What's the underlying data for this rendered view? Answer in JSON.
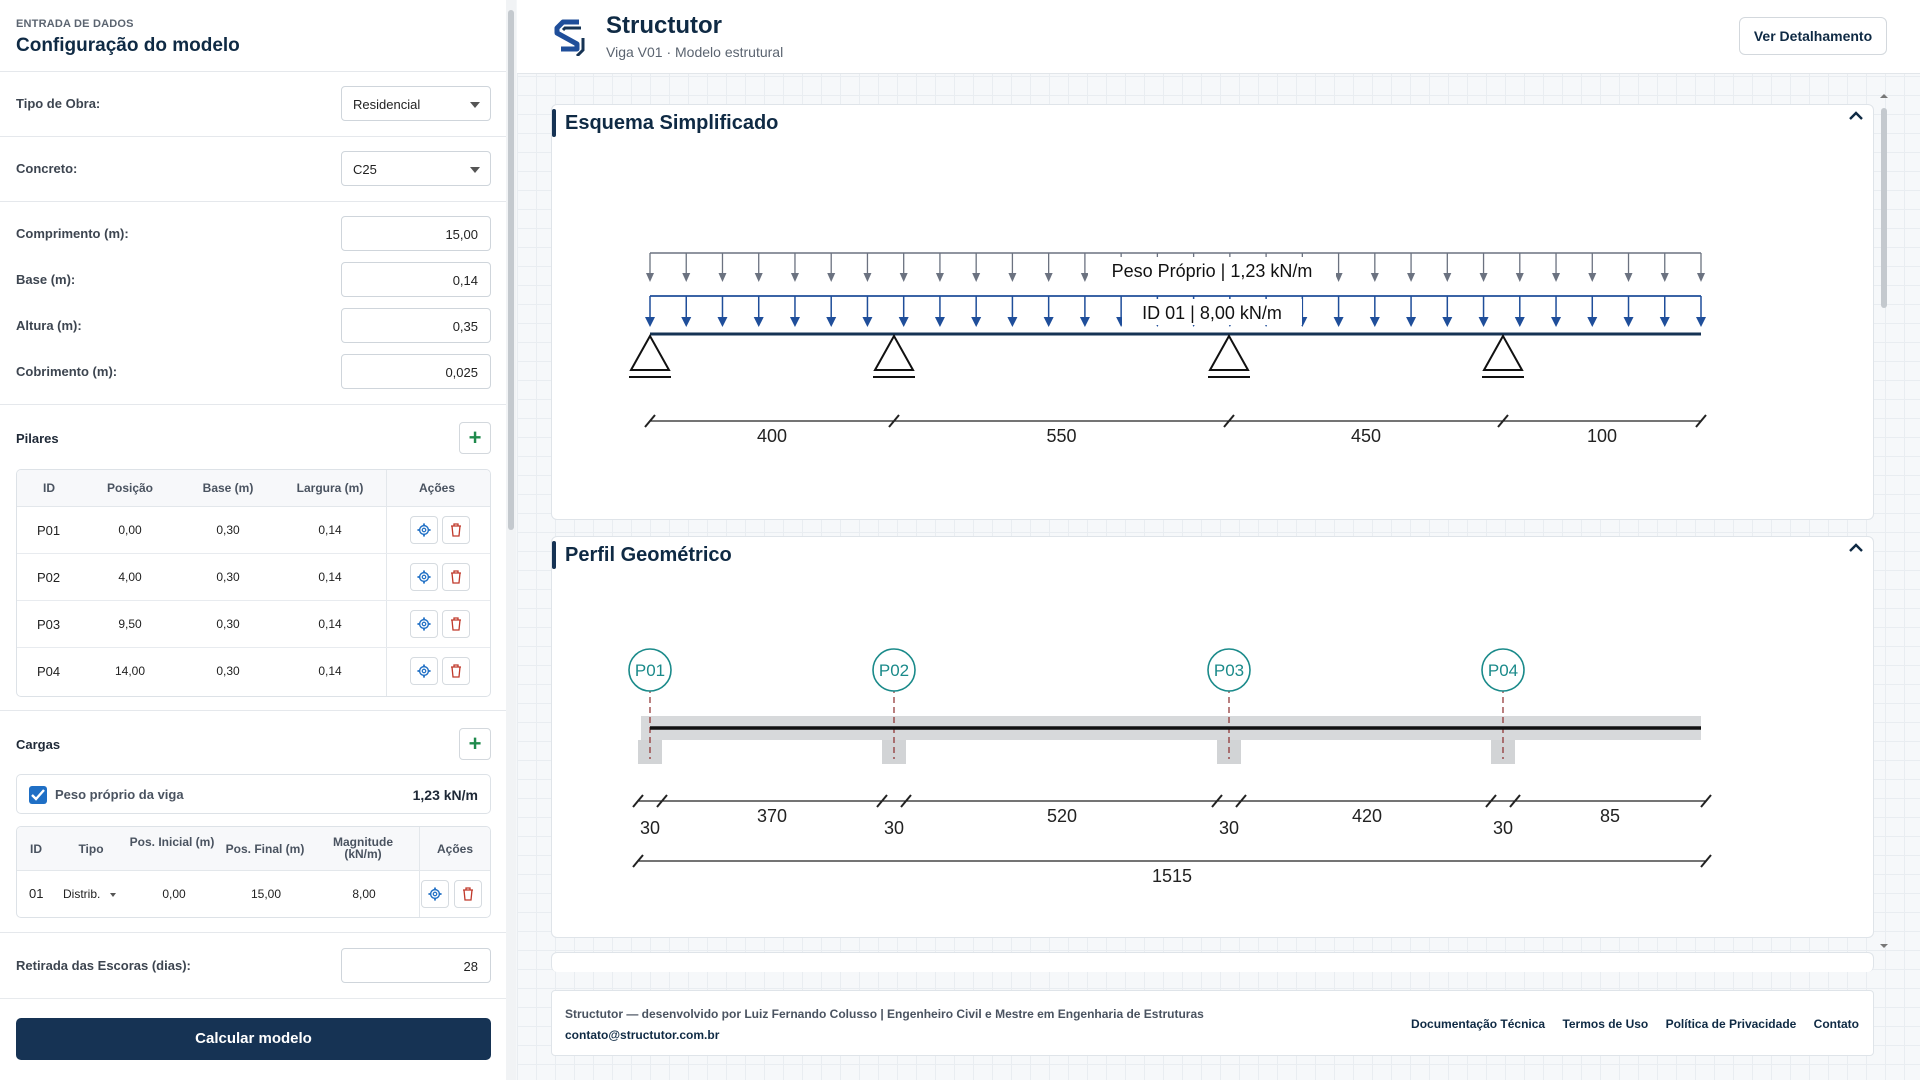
{
  "sidebar": {
    "eyebrow": "ENTRADA DE DADOS",
    "title": "Configuração do modelo",
    "tipo_obra": {
      "label": "Tipo de Obra:",
      "value": "Residencial"
    },
    "concreto": {
      "label": "Concreto:",
      "value": "C25"
    },
    "comprimento": {
      "label": "Comprimento (m):",
      "value": "15,00"
    },
    "base": {
      "label": "Base (m):",
      "value": "0,14"
    },
    "altura": {
      "label": "Altura (m):",
      "value": "0,35"
    },
    "cobrimento": {
      "label": "Cobrimento (m):",
      "value": "0,025"
    },
    "pilares": {
      "title": "Pilares",
      "add_label": "+",
      "headers": [
        "ID",
        "Posição",
        "Base (m)",
        "Largura (m)",
        "Ações"
      ],
      "rows": [
        {
          "id": "P01",
          "posicao": "0,00",
          "base": "0,30",
          "largura": "0,14"
        },
        {
          "id": "P02",
          "posicao": "4,00",
          "base": "0,30",
          "largura": "0,14"
        },
        {
          "id": "P03",
          "posicao": "9,50",
          "base": "0,30",
          "largura": "0,14"
        },
        {
          "id": "P04",
          "posicao": "14,00",
          "base": "0,30",
          "largura": "0,14"
        }
      ]
    },
    "cargas": {
      "title": "Cargas",
      "add_label": "+",
      "peso_proprio": {
        "label": "Peso próprio da viga",
        "value": "1,23 kN/m",
        "checked": true
      },
      "headers": [
        "ID",
        "Tipo",
        "Pos. Inicial (m)",
        "Pos. Final (m)",
        "Magnitude (kN/m)",
        "Ações"
      ],
      "rows": [
        {
          "id": "01",
          "tipo": "Distrib.",
          "inicio": "0,00",
          "fim": "15,00",
          "magnitude": "8,00"
        }
      ]
    },
    "escoras": {
      "label": "Retirada das Escoras (dias):",
      "value": "28"
    },
    "calc_label": "Calcular modelo"
  },
  "header": {
    "title": "Structutor",
    "subtitle": "Viga V01 · Modelo estrutural",
    "detail_button": "Ver Detalhamento"
  },
  "esquema": {
    "title": "Esquema Simplificado",
    "load_self": "Peso Próprio | 1,23 kN/m",
    "load_id": "ID 01 | 8,00 kN/m",
    "spans": [
      "400",
      "550",
      "450",
      "100"
    ]
  },
  "perfil": {
    "title": "Perfil Geométrico",
    "pillars": [
      "P01",
      "P02",
      "P03",
      "P04"
    ],
    "widths": [
      "30",
      "30",
      "30",
      "30"
    ],
    "clear_spans": [
      "370",
      "520",
      "420",
      "85"
    ],
    "total": "1515"
  },
  "footer": {
    "credit": "Structutor — desenvolvido por Luiz Fernando Colusso | Engenheiro Civil e Mestre em Engenharia de Estruturas",
    "email": "contato@structutor.com.br",
    "links": [
      "Documentação Técnica",
      "Termos de Uso",
      "Política de Privacidade",
      "Contato"
    ]
  },
  "colors": {
    "brand": "#163354",
    "beam_load": "#1f4e9a",
    "self_load": "#6b7280",
    "pillar_teal": "#1a8a8a",
    "add_green": "#1f8a4c",
    "delete_red": "#c0392b"
  }
}
